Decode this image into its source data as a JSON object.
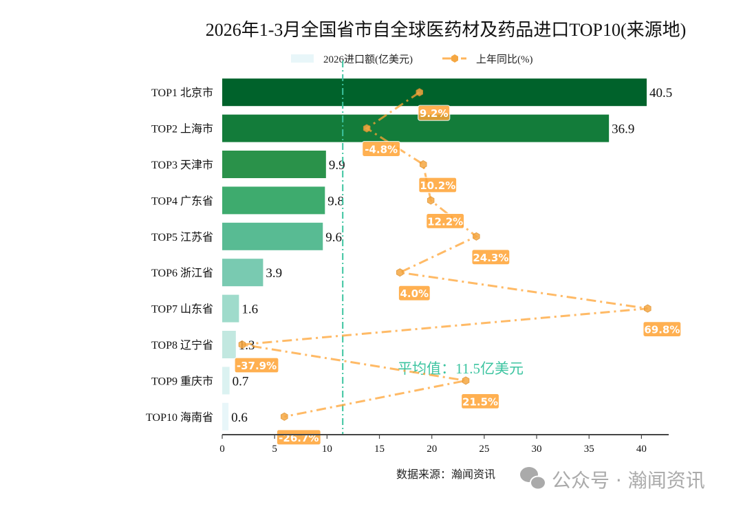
{
  "chart_data": {
    "type": "bar",
    "orientation": "horizontal",
    "title": "2026年1-3月全国省市自全球医药材及药品进口TOP10(来源地)",
    "categories": [
      "TOP1 北京市",
      "TOP2 上海市",
      "TOP3 天津市",
      "TOP4 广东省",
      "TOP5 江苏省",
      "TOP6 浙江省",
      "TOP7 山东省",
      "TOP8 辽宁省",
      "TOP9 重庆市",
      "TOP10 海南省"
    ],
    "series": [
      {
        "name": "2026进口额(亿美元)",
        "type": "bar",
        "values": [
          40.5,
          36.9,
          9.9,
          9.8,
          9.6,
          3.9,
          1.6,
          1.3,
          0.7,
          0.6
        ],
        "colors": [
          "#00622b",
          "#137c3a",
          "#2a924a",
          "#3eab6e",
          "#58bb93",
          "#79cab1",
          "#9fdbcb",
          "#c2e8e0",
          "#dbf2f1",
          "#e8f6f9"
        ]
      },
      {
        "name": "上年同比(%)",
        "type": "line",
        "axis": "secondary-hidden",
        "values": [
          9.2,
          -4.8,
          10.2,
          12.2,
          24.3,
          4.0,
          69.8,
          -37.9,
          21.5,
          -26.7
        ],
        "labels": [
          "9.2%",
          "-4.8%",
          "10.2%",
          "12.2%",
          "24.3%",
          "4.0%",
          "69.8%",
          "-37.9%",
          "21.5%",
          "-26.7%"
        ],
        "color": "#ffa333",
        "linestyle": "dash-dot",
        "marker": "hexagon"
      }
    ],
    "xlim": [
      0,
      42.6
    ],
    "xticks": [
      "0",
      "5",
      "10",
      "15",
      "20",
      "25",
      "30",
      "35",
      "40"
    ],
    "secondary_xlim": [
      -43.2,
      75.4
    ],
    "average": {
      "value": 11.5,
      "label": "平均值：11.5亿美元",
      "color": "#3cc4a0"
    },
    "legend_placement": "top-center",
    "grid": false,
    "source": "数据来源：瀚闻资讯"
  },
  "watermark": "公众号 · 瀚闻资讯"
}
